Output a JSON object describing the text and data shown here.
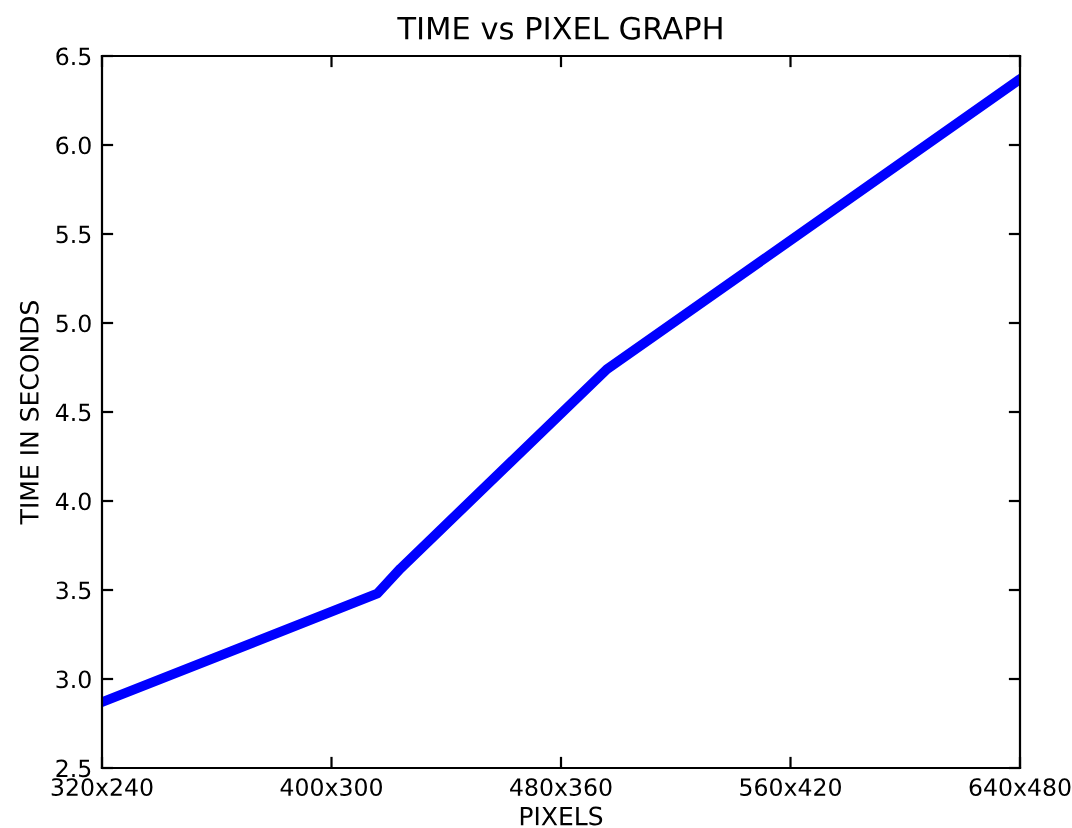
{
  "chart_data": {
    "type": "line",
    "title": "TIME vs PIXEL GRAPH",
    "xlabel": "PIXELS",
    "ylabel": "TIME IN SECONDS",
    "categories": [
      "320x240",
      null,
      null,
      null,
      null,
      null,
      null,
      null,
      null,
      null,
      "400x300",
      null,
      null,
      null,
      null,
      null,
      null,
      null,
      null,
      null,
      "480x360",
      null,
      null,
      null,
      null,
      null,
      null,
      null,
      null,
      null,
      "560x420",
      null,
      null,
      null,
      null,
      null,
      null,
      null,
      null,
      null,
      "640x480"
    ],
    "series": [
      {
        "color": "#0000ff",
        "values": [
          2.87,
          null,
          null,
          null,
          null,
          null,
          null,
          null,
          null,
          null,
          null,
          null,
          3.48,
          3.62,
          null,
          null,
          null,
          null,
          null,
          null,
          null,
          null,
          4.74,
          null,
          null,
          null,
          null,
          null,
          null,
          null,
          null,
          null,
          null,
          null,
          null,
          null,
          null,
          null,
          null,
          null,
          6.37
        ]
      }
    ],
    "ylim": [
      2.5,
      6.5
    ],
    "yticks": [
      {
        "value": 2.5,
        "label": "2.5"
      },
      {
        "value": 3.0,
        "label": "3.0"
      },
      {
        "value": 3.5,
        "label": "3.5"
      },
      {
        "value": 4.0,
        "label": "4.0"
      },
      {
        "value": 4.5,
        "label": "4.5"
      },
      {
        "value": 5.0,
        "label": "5.0"
      },
      {
        "value": 5.5,
        "label": "5.5"
      },
      {
        "value": 6.0,
        "label": "6.0"
      },
      {
        "value": 6.5,
        "label": "6.5"
      }
    ],
    "grid": false,
    "legend": false
  }
}
